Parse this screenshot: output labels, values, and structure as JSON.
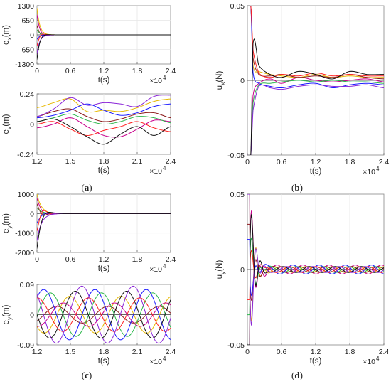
{
  "colors": [
    "#e6b800",
    "#c8008c",
    "#8b1a1a",
    "#2db84d",
    "#1a1aff",
    "#ff2020",
    "#8b26d8",
    "#111111"
  ],
  "zero_line_color": "#666666",
  "captions": {
    "a": {
      "open": "(",
      "letter": "a",
      "close": ")"
    },
    "b": {
      "open": "(",
      "letter": "b",
      "close": ")"
    },
    "c": {
      "open": "(",
      "letter": "c",
      "close": ")"
    },
    "d": {
      "open": "(",
      "letter": "d",
      "close": ")"
    }
  },
  "chart_data": [
    {
      "id": "a1",
      "type": "line",
      "xlabel": "t(s)",
      "ylabel_main": "e",
      "ylabel_sub": "x",
      "ylabel_unit": "(m)",
      "x_multiplier": "×10",
      "x_multiplier_exp": "4",
      "xlim": [
        0,
        2.4
      ],
      "ylim": [
        -1300,
        1300
      ],
      "xticks": [
        "0",
        "0.6",
        "1.2",
        "1.8",
        "2.4"
      ],
      "yticks": [
        "1300",
        "650",
        "0",
        "-650",
        "-1300"
      ],
      "ytick_values": [
        1300,
        650,
        0,
        -650,
        -1300
      ],
      "decay": {
        "initial_values": [
          1200,
          900,
          420,
          230,
          -200,
          -500,
          -850,
          -1100
        ],
        "tau": 0.05
      }
    },
    {
      "id": "a2",
      "type": "line",
      "xlabel": "t(s)",
      "ylabel_main": "e",
      "ylabel_sub": "x",
      "ylabel_unit": "(m)",
      "x_multiplier": "×10",
      "x_multiplier_exp": "4",
      "xlim": [
        1.2,
        2.4
      ],
      "ylim": [
        -0.24,
        0.24
      ],
      "xticks": [
        "1.2",
        "1.5",
        "1.8",
        "2.1",
        "2.4"
      ],
      "yticks": [
        "0.24",
        "0",
        "-0.24"
      ],
      "ytick_values": [
        0.24,
        0,
        -0.24
      ],
      "series": [
        {
          "x": [
            1.2,
            1.35,
            1.5,
            1.65,
            1.8,
            1.95,
            2.1,
            2.25,
            2.4
          ],
          "y": [
            0.13,
            0.17,
            0.2,
            0.1,
            0.11,
            0.1,
            0.13,
            0.18,
            0.2
          ]
        },
        {
          "x": [
            1.2,
            1.35,
            1.5,
            1.65,
            1.8,
            1.95,
            2.1,
            2.25,
            2.4
          ],
          "y": [
            -0.03,
            0.0,
            0.05,
            -0.02,
            -0.09,
            -0.1,
            -0.04,
            0.03,
            0.02
          ]
        },
        {
          "x": [
            1.2,
            1.35,
            1.5,
            1.65,
            1.8,
            1.95,
            2.1,
            2.25,
            2.4
          ],
          "y": [
            0.06,
            0.1,
            0.12,
            0.06,
            0.02,
            0.04,
            0.08,
            0.09,
            0.05
          ]
        },
        {
          "x": [
            1.2,
            1.35,
            1.5,
            1.65,
            1.8,
            1.95,
            2.1,
            2.25,
            2.4
          ],
          "y": [
            0.02,
            0.05,
            0.08,
            0.03,
            0.0,
            0.02,
            0.06,
            0.05,
            0.01
          ]
        },
        {
          "x": [
            1.2,
            1.35,
            1.5,
            1.65,
            1.8,
            1.95,
            2.1,
            2.25,
            2.4
          ],
          "y": [
            0.05,
            0.07,
            0.11,
            0.16,
            0.11,
            0.07,
            0.09,
            0.14,
            0.16
          ]
        },
        {
          "x": [
            1.2,
            1.35,
            1.5,
            1.65,
            1.8,
            1.95,
            2.1,
            2.25,
            2.4
          ],
          "y": [
            0.0,
            0.02,
            -0.04,
            -0.09,
            -0.05,
            -0.02,
            0.02,
            -0.03,
            -0.06
          ]
        },
        {
          "x": [
            1.2,
            1.35,
            1.5,
            1.65,
            1.8,
            1.95,
            2.1,
            2.25,
            2.4
          ],
          "y": [
            0.06,
            0.12,
            0.21,
            0.15,
            0.17,
            0.16,
            0.14,
            0.22,
            0.23
          ]
        },
        {
          "x": [
            1.2,
            1.35,
            1.5,
            1.65,
            1.8,
            1.95,
            2.1,
            2.25,
            2.4
          ],
          "y": [
            0.02,
            0.04,
            -0.02,
            -0.1,
            -0.16,
            -0.08,
            -0.02,
            -0.09,
            -0.02
          ]
        }
      ]
    },
    {
      "id": "b",
      "type": "line",
      "xlabel": "t(s)",
      "ylabel_main": "u",
      "ylabel_sub": "x",
      "ylabel_unit": "(N)",
      "x_multiplier": "×10",
      "x_multiplier_exp": "4",
      "xlim": [
        0,
        2.4
      ],
      "ylim": [
        -0.05,
        0.05
      ],
      "xticks": [
        "0",
        "0.6",
        "1.2",
        "1.8",
        "2.4"
      ],
      "yticks": [
        "0.05",
        "0",
        "-0.05"
      ],
      "ytick_values": [
        0.05,
        0,
        -0.05
      ],
      "series": [
        {
          "x": [
            0,
            0.06,
            0.1,
            0.2,
            0.4,
            0.6,
            0.9,
            1.2,
            1.5,
            1.8,
            2.1,
            2.4
          ],
          "y": [
            0.05,
            0.05,
            0.01,
            0.006,
            0.004,
            0.003,
            0.002,
            0.004,
            0.002,
            0.003,
            0.002,
            0.002
          ]
        },
        {
          "x": [
            0,
            0.06,
            0.1,
            0.2,
            0.4,
            0.6,
            0.9,
            1.2,
            1.5,
            1.8,
            2.1,
            2.4
          ],
          "y": [
            -0.05,
            -0.05,
            -0.01,
            -0.002,
            0.001,
            -0.002,
            0.002,
            0.0,
            -0.001,
            0.0,
            0.001,
            -0.001
          ]
        },
        {
          "x": [
            0,
            0.06,
            0.1,
            0.2,
            0.4,
            0.6,
            0.9,
            1.2,
            1.5,
            1.8,
            2.1,
            2.4
          ],
          "y": [
            0.05,
            0.05,
            0.015,
            0.004,
            0.003,
            0.004,
            0.002,
            0.003,
            0.002,
            0.004,
            0.002,
            0.001
          ]
        },
        {
          "x": [
            0,
            0.06,
            0.1,
            0.2,
            0.4,
            0.6,
            0.9,
            1.2,
            1.5,
            1.8,
            2.1,
            2.4
          ],
          "y": [
            -0.05,
            -0.05,
            -0.015,
            -0.003,
            -0.002,
            -0.001,
            0.0,
            -0.001,
            0.0,
            -0.001,
            -0.001,
            -0.002
          ]
        },
        {
          "x": [
            0,
            0.06,
            0.1,
            0.2,
            0.4,
            0.6,
            0.9,
            1.2,
            1.5,
            1.8,
            2.1,
            2.4
          ],
          "y": [
            0.05,
            0.05,
            0.005,
            -0.002,
            -0.004,
            -0.005,
            -0.003,
            -0.002,
            -0.005,
            -0.003,
            -0.002,
            -0.003
          ]
        },
        {
          "x": [
            0,
            0.06,
            0.1,
            0.2,
            0.4,
            0.6,
            0.9,
            1.2,
            1.5,
            1.8,
            2.1,
            2.4
          ],
          "y": [
            0.05,
            0.05,
            0.02,
            0.005,
            0.002,
            0.004,
            0.003,
            0.005,
            0.003,
            0.004,
            0.003,
            0.003
          ]
        },
        {
          "x": [
            0,
            0.06,
            0.1,
            0.2,
            0.4,
            0.6,
            0.9,
            1.2,
            1.5,
            1.8,
            2.1,
            2.4
          ],
          "y": [
            -0.05,
            -0.05,
            -0.02,
            -0.004,
            -0.005,
            -0.006,
            -0.004,
            -0.003,
            -0.004,
            -0.004,
            -0.003,
            -0.005
          ]
        },
        {
          "x": [
            0,
            0.06,
            0.1,
            0.2,
            0.4,
            0.6,
            0.9,
            1.2,
            1.5,
            1.8,
            2.1,
            2.4
          ],
          "y": [
            -0.05,
            -0.05,
            0.025,
            0.01,
            0.004,
            0.002,
            0.006,
            0.004,
            0.001,
            0.006,
            0.004,
            0.004
          ]
        }
      ]
    },
    {
      "id": "c1",
      "type": "line",
      "xlabel": "t(s)",
      "ylabel_main": "e",
      "ylabel_sub": "y",
      "ylabel_unit": "(m)",
      "x_multiplier": "×10",
      "x_multiplier_exp": "4",
      "xlim": [
        0,
        2.4
      ],
      "ylim": [
        -2000,
        1000
      ],
      "xticks": [
        "0",
        "0.6",
        "1.2",
        "1.8",
        "2.4"
      ],
      "yticks": [
        "1000",
        "0",
        "-1000",
        "-2000"
      ],
      "ytick_values": [
        1000,
        0,
        -1000,
        -2000
      ],
      "decay": {
        "initial_values": [
          1000,
          800,
          500,
          300,
          -500,
          -900,
          -1400,
          -1800
        ],
        "tau": 0.08
      }
    },
    {
      "id": "c2",
      "type": "line",
      "xlabel": "t(s)",
      "ylabel_main": "e",
      "ylabel_sub": "y",
      "ylabel_unit": "(m)",
      "x_multiplier": "×10",
      "x_multiplier_exp": "4",
      "xlim": [
        1.2,
        2.4
      ],
      "ylim": [
        -0.09,
        0.09
      ],
      "xticks": [
        "1.2",
        "1.5",
        "1.8",
        "2.1",
        "2.4"
      ],
      "yticks": [
        "0.09",
        "0",
        "-0.09"
      ],
      "ytick_values": [
        0.09,
        0,
        -0.09
      ],
      "oscillation": {
        "period": 0.46,
        "amplitudes": [
          0.055,
          0.035,
          0.025,
          0.065,
          0.075,
          0.05,
          0.085,
          0.07
        ],
        "phases": [
          0.0,
          0.8,
          1.6,
          2.4,
          3.2,
          4.0,
          4.8,
          5.6
        ]
      }
    },
    {
      "id": "d",
      "type": "line",
      "xlabel": "t(s)",
      "ylabel_main": "u",
      "ylabel_sub": "y",
      "ylabel_unit": "(N)",
      "x_multiplier": "×10",
      "x_multiplier_exp": "4",
      "xlim": [
        0,
        2.4
      ],
      "ylim": [
        -0.05,
        0.05
      ],
      "xticks": [
        "0",
        "0.6",
        "1.2",
        "1.8",
        "2.4"
      ],
      "yticks": [
        "0.05",
        "0",
        "-0.05"
      ],
      "ytick_values": [
        0.05,
        0,
        -0.05
      ],
      "spikes": {
        "values": [
          0.05,
          -0.05,
          0.03,
          -0.03,
          0.02,
          -0.02,
          0.05,
          -0.05
        ],
        "settle": 0.25
      },
      "oscillation": {
        "period": 0.46,
        "amplitudes": [
          0.002,
          0.003,
          0.002,
          0.002,
          0.003,
          0.002,
          0.002,
          0.002
        ],
        "phases": [
          0.0,
          0.8,
          1.6,
          2.4,
          3.2,
          4.0,
          4.8,
          5.6
        ]
      }
    }
  ]
}
